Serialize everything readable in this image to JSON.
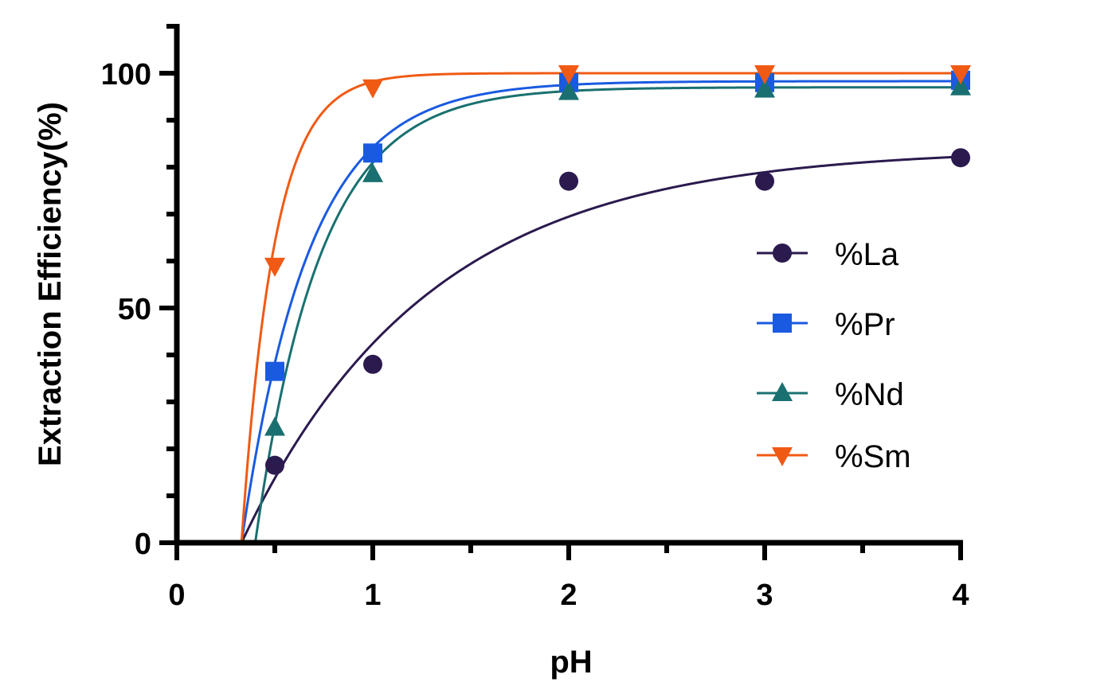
{
  "chart_data": {
    "type": "scatter",
    "title": "",
    "xlabel": "pH",
    "ylabel": "Extraction  Efficiency(%)",
    "xlim": [
      0,
      4
    ],
    "ylim": [
      0,
      110
    ],
    "xticks": [
      0,
      1,
      2,
      3,
      4
    ],
    "xtick_labels": [
      "0",
      "1",
      "2",
      "3",
      "4"
    ],
    "yticks": [
      0,
      50,
      100
    ],
    "ytick_labels": [
      "0",
      "50",
      "100"
    ],
    "legend_position": "right",
    "series": [
      {
        "name": "%La",
        "color": "#2b1a4e",
        "marker": "circle",
        "x": [
          0.5,
          1,
          2,
          3,
          4
        ],
        "y": [
          16.5,
          38,
          77,
          77,
          82
        ],
        "fit": {
          "model": "one-phase-association",
          "x0": 0.33,
          "plateau": 84.0,
          "k": 1.05
        }
      },
      {
        "name": "%Pr",
        "color": "#1a5ae0",
        "marker": "square",
        "x": [
          0.5,
          1,
          2,
          3,
          4
        ],
        "y": [
          36.5,
          83,
          98,
          98,
          98.5
        ],
        "fit": {
          "model": "one-phase-association",
          "x0": 0.33,
          "plateau": 98.3,
          "k": 2.9
        }
      },
      {
        "name": "%Nd",
        "color": "#1a7070",
        "marker": "triangle-up",
        "x": [
          0.5,
          1,
          2,
          3,
          4
        ],
        "y": [
          24.5,
          78.5,
          96,
          96.5,
          97
        ],
        "fit": {
          "model": "one-phase-association",
          "x0": 0.4,
          "plateau": 97.0,
          "k": 3.0
        }
      },
      {
        "name": "%Sm",
        "color": "#f05a14",
        "marker": "triangle-down",
        "x": [
          0.5,
          1,
          2,
          3,
          4
        ],
        "y": [
          59,
          97,
          100,
          100,
          100
        ],
        "fit": {
          "model": "one-phase-association",
          "x0": 0.33,
          "plateau": 100.0,
          "k": 6.0
        }
      }
    ]
  }
}
